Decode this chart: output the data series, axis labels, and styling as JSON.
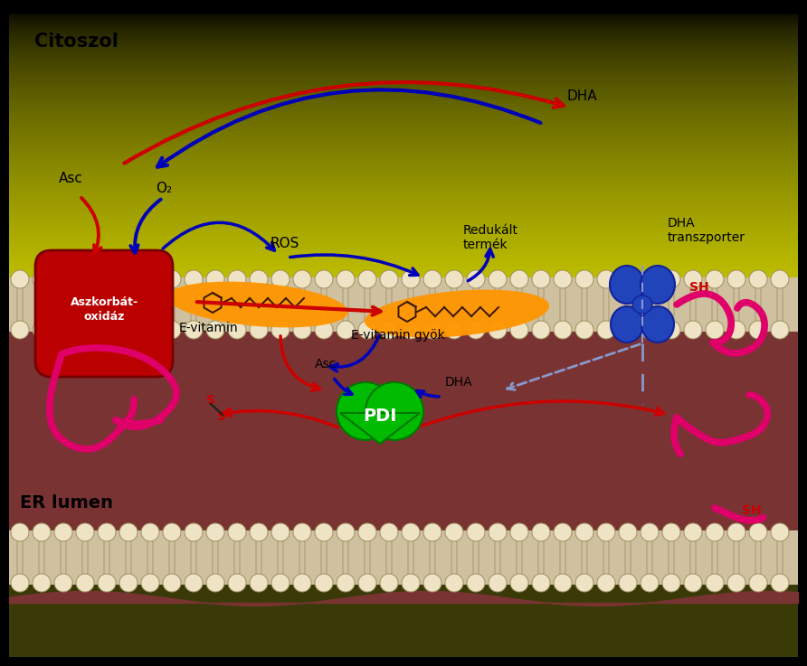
{
  "label_citoszol": "Citoszol",
  "label_er_lumen": "ER lumen",
  "label_asc": "Asc",
  "label_o2": "O₂",
  "label_ros": "ROS",
  "label_redukalt": "Redukált\ntermék",
  "label_evitamin": "E-vitamin",
  "label_evitamin_gyok": "E-vitamin gyök",
  "label_dha_top": "DHA",
  "label_dha_transzporter": "DHA\ntranszporter",
  "label_dha_er": "DHA",
  "label_asc_er": "Asc",
  "label_pdi": "PDI",
  "color_red": "#cc0000",
  "color_blue": "#0000bb",
  "color_blue_dash": "#8899cc",
  "color_magenta": "#e0006a",
  "color_orange": "#ff9900",
  "color_green": "#00bb00",
  "color_navy": "#2244aa",
  "color_white": "#ffffff",
  "color_black": "#000000",
  "color_tan": "#ddd0a8",
  "color_lipid_circle": "#eee4c5",
  "color_lipid_edge": "#a09060"
}
